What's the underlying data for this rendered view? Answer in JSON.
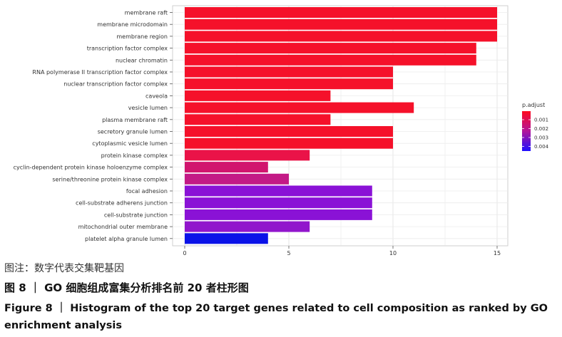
{
  "chart_data": {
    "type": "bar",
    "orientation": "horizontal",
    "categories": [
      "membrane raft",
      "membrane microdomain",
      "membrane region",
      "transcription factor complex",
      "nuclear chromatin",
      "RNA polymerase II transcription factor complex",
      "nuclear transcription factor complex",
      "caveola",
      "vesicle lumen",
      "plasma membrane raft",
      "secretory granule lumen",
      "cytoplasmic vesicle lumen",
      "protein kinase complex",
      "cyclin-dependent protein kinase holoenzyme complex",
      "serine/threonine protein kinase complex",
      "focal adhesion",
      "cell-substrate adherens junction",
      "cell-substrate junction",
      "mitochondrial outer membrane",
      "platelet alpha granule lumen"
    ],
    "values": [
      15,
      15,
      15,
      14,
      14,
      10,
      10,
      7,
      11,
      7,
      10,
      10,
      6,
      4,
      5,
      9,
      9,
      9,
      6,
      4
    ],
    "colors": [
      "#f5112a",
      "#f5112a",
      "#f5112a",
      "#f5112a",
      "#f5112a",
      "#f5112a",
      "#f5112a",
      "#f5112a",
      "#f5112a",
      "#f5112a",
      "#f5112a",
      "#f5112a",
      "#ea1348",
      "#d1156e",
      "#c31a86",
      "#8a12d6",
      "#8a12d6",
      "#8a12d6",
      "#9115cc",
      "#0a12e8"
    ],
    "xlim": [
      0,
      15.5
    ],
    "xticks": [
      "0",
      "5",
      "10",
      "15"
    ],
    "grid": true,
    "legend": {
      "title": "p.adjust",
      "position": "right",
      "labels": [
        "0.001",
        "0.002",
        "0.003",
        "0.004"
      ],
      "gradient": [
        "#ff0a1e",
        "#b2169a",
        "#1f10ff"
      ]
    }
  },
  "caption": {
    "note": "图注：数字代表交集靶基因",
    "cn": "图 8 ｜ GO 细胞组成富集分析排名前 20 者柱形图",
    "en": "Figure 8 ｜ Histogram of the top 20 target genes related to cell composition as ranked by GO enrichment analysis"
  }
}
